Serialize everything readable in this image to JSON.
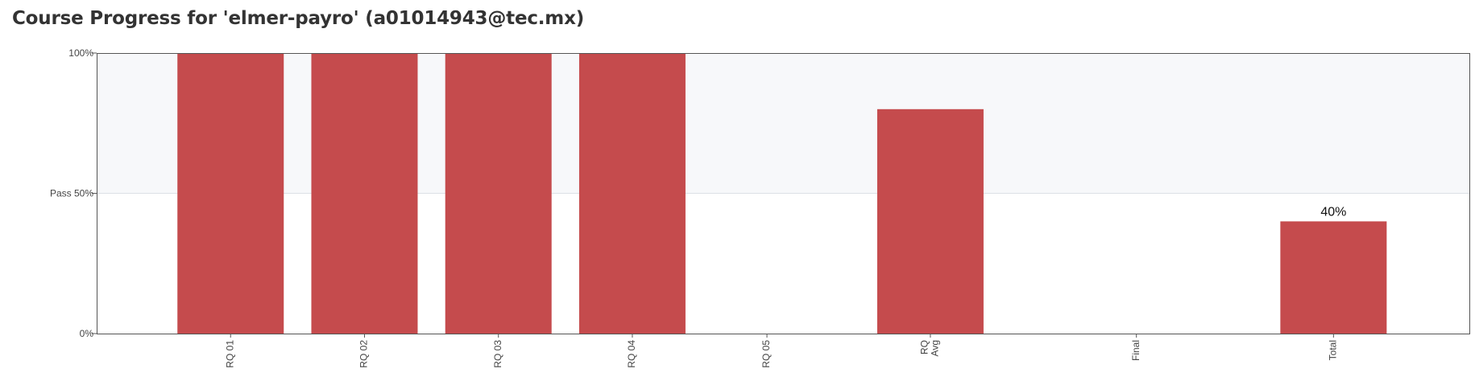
{
  "page": {
    "title": "Course Progress for 'elmer-payro' (a01014943@tec.mx)"
  },
  "chart_data": {
    "type": "bar",
    "categories": [
      [
        "RQ 01"
      ],
      [
        "RQ 02"
      ],
      [
        "RQ 03"
      ],
      [
        "RQ 04"
      ],
      [
        "RQ 05"
      ],
      [
        "RQ",
        "Avg"
      ],
      [
        "Final"
      ],
      [
        "Total"
      ]
    ],
    "values": [
      100,
      100,
      100,
      100,
      0,
      80,
      0,
      40
    ],
    "data_labels": [
      "",
      "",
      "",
      "",
      "",
      "",
      "",
      "40%"
    ],
    "y_ticks": [
      {
        "value": 0,
        "label": "0%"
      },
      {
        "value": 50,
        "label": "Pass 50%"
      },
      {
        "value": 100,
        "label": "100%"
      }
    ],
    "ylim": [
      0,
      100
    ],
    "pass_threshold": 50,
    "colors": {
      "bar": "#c54b4d",
      "pass_band": "#f7f8fa",
      "axis": "#555555",
      "gridline": "#dde1e6"
    }
  }
}
